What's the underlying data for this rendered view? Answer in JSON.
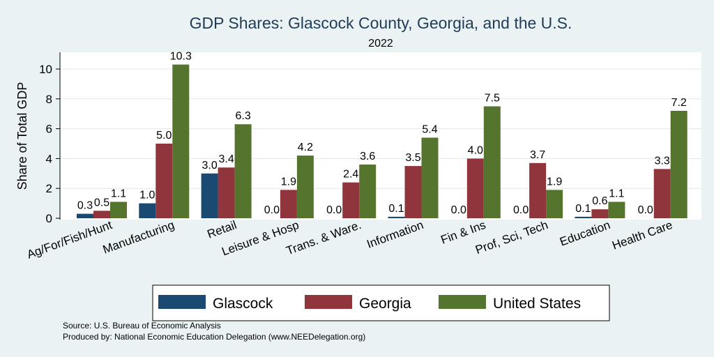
{
  "chart_data": {
    "type": "bar",
    "title": "GDP Shares: Glascock County, Georgia, and the U.S.",
    "subtitle": "2022",
    "xlabel": "",
    "ylabel": "Share of Total GDP",
    "ylim": [
      0,
      11
    ],
    "yticks": [
      0,
      2,
      4,
      6,
      8,
      10
    ],
    "grid": true,
    "legend_position": "bottom",
    "categories": [
      "Ag/For/Fish/Hunt",
      "Manufacturing",
      "Retail",
      "Leisure & Hosp",
      "Trans. & Ware.",
      "Information",
      "Fin & Ins",
      "Prof, Sci, Tech",
      "Education",
      "Health Care"
    ],
    "series": [
      {
        "name": "Glascock",
        "color": "#1a4a72",
        "values": [
          0.3,
          1.0,
          3.0,
          0.0,
          0.0,
          0.1,
          0.0,
          0.0,
          0.1,
          0.0
        ],
        "labels": [
          "0.3",
          "1.0",
          "3.0",
          "0.0",
          "0.0",
          "0.1",
          "0.0",
          "0.0",
          "0.1",
          "0.0"
        ]
      },
      {
        "name": "Georgia",
        "color": "#90353b",
        "values": [
          0.5,
          5.0,
          3.4,
          1.9,
          2.4,
          3.5,
          4.0,
          3.7,
          0.6,
          3.3
        ],
        "labels": [
          "0.5",
          "5.0",
          "3.4",
          "1.9",
          "2.4",
          "3.5",
          "4.0",
          "3.7",
          "0.6",
          "3.3"
        ]
      },
      {
        "name": "United States",
        "color": "#55752f",
        "values": [
          1.1,
          10.3,
          6.3,
          4.2,
          3.6,
          5.4,
          7.5,
          1.9,
          1.1,
          7.2
        ],
        "labels": [
          "1.1",
          "10.3",
          "6.3",
          "4.2",
          "3.6",
          "5.4",
          "7.5",
          "1.9",
          "1.1",
          "7.2"
        ]
      }
    ],
    "notes": [
      "Source: U.S. Bureau of Economic Analysis",
      "Produced by: National Economic Education Delegation (www.NEEDelegation.org)"
    ]
  }
}
